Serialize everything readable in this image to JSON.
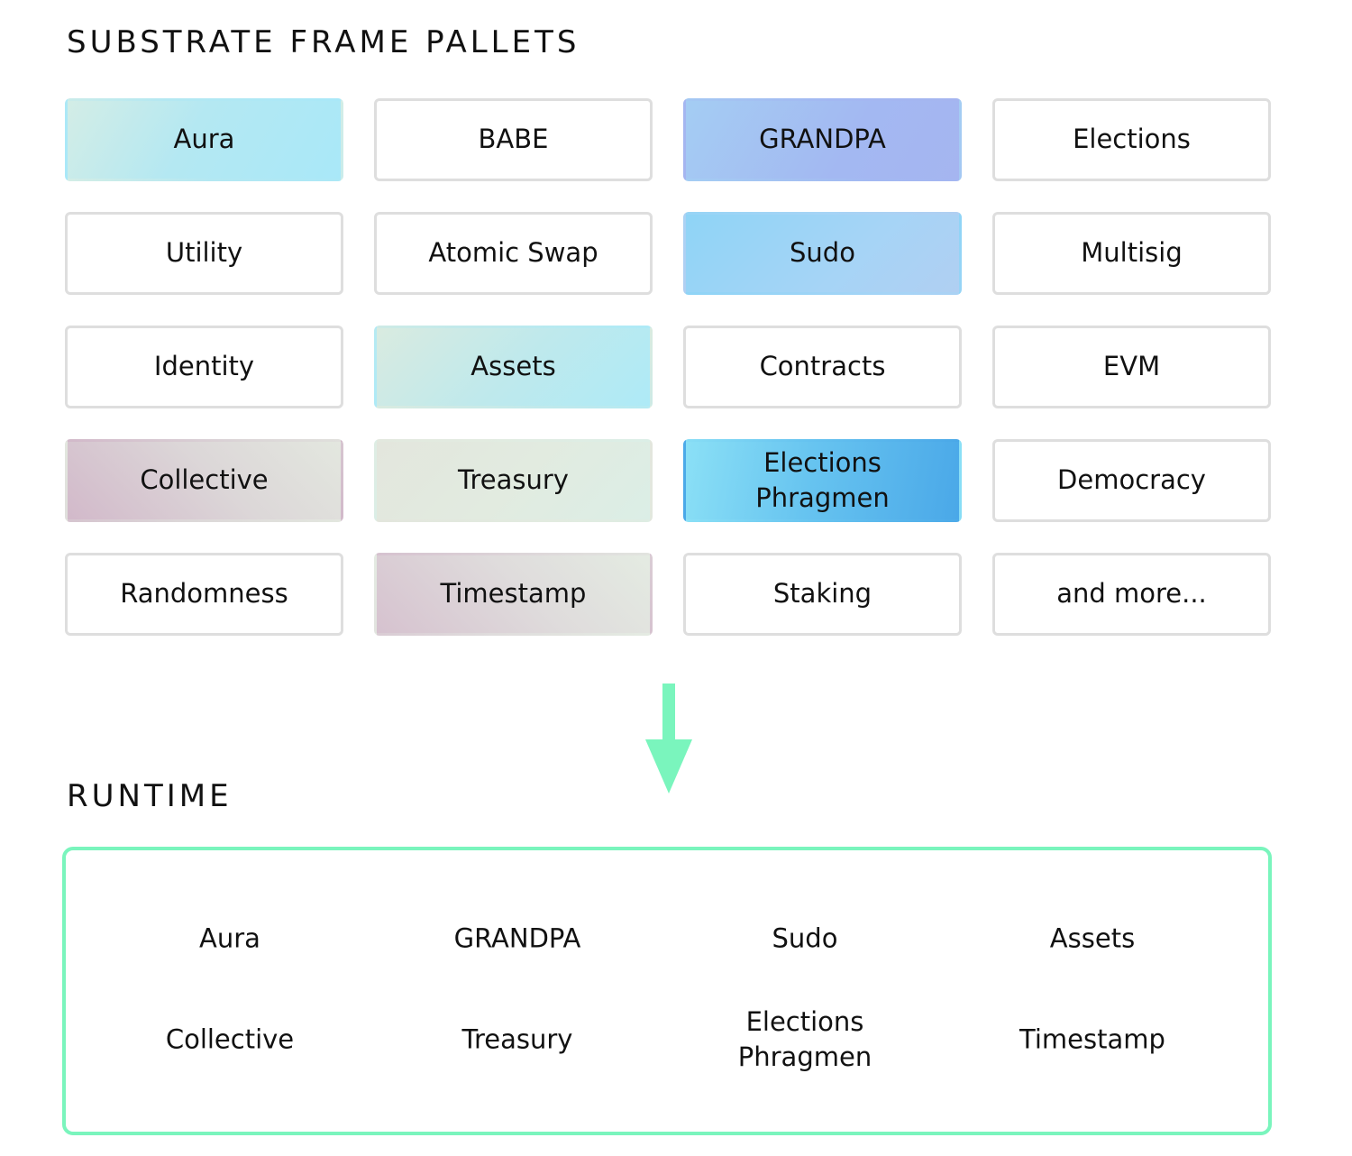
{
  "pallets_section": {
    "title": "SUBSTRATE FRAME PALLETS",
    "pallets": [
      {
        "label": "Aura",
        "style": "g-aura"
      },
      {
        "label": "BABE",
        "style": ""
      },
      {
        "label": "GRANDPA",
        "style": "g-grandpa"
      },
      {
        "label": "Elections",
        "style": ""
      },
      {
        "label": "Utility",
        "style": ""
      },
      {
        "label": "Atomic Swap",
        "style": ""
      },
      {
        "label": "Sudo",
        "style": "g-sudo"
      },
      {
        "label": "Multisig",
        "style": ""
      },
      {
        "label": "Identity",
        "style": ""
      },
      {
        "label": "Assets",
        "style": "g-assets"
      },
      {
        "label": "Contracts",
        "style": ""
      },
      {
        "label": "EVM",
        "style": ""
      },
      {
        "label": "Collective",
        "style": "g-collective"
      },
      {
        "label": "Treasury",
        "style": "g-treasury"
      },
      {
        "label": "Elections\nPhragmen",
        "style": "g-phragmen"
      },
      {
        "label": "Democracy",
        "style": ""
      },
      {
        "label": "Randomness",
        "style": ""
      },
      {
        "label": "Timestamp",
        "style": "g-timestamp"
      },
      {
        "label": "Staking",
        "style": ""
      },
      {
        "label": "and more...",
        "style": ""
      }
    ]
  },
  "arrow": {
    "color": "#7af5bd"
  },
  "runtime_section": {
    "title": "RUNTIME",
    "border_color": "#7af5bd",
    "items": [
      "Aura",
      "GRANDPA",
      "Sudo",
      "Assets",
      "Collective",
      "Treasury",
      "Elections\nPhragmen",
      "Timestamp"
    ]
  }
}
